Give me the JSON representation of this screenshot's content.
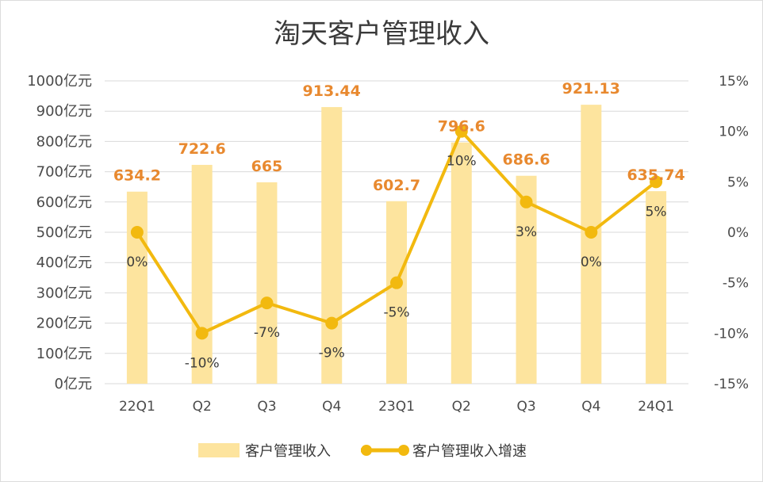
{
  "chart_data": {
    "type": "bar+line",
    "title": "淘天客户管理收入",
    "categories": [
      "22Q1",
      "Q2",
      "Q3",
      "Q4",
      "23Q1",
      "Q2",
      "Q3",
      "Q4",
      "24Q1"
    ],
    "series": [
      {
        "name": "客户管理收入",
        "type": "bar",
        "axis": "left",
        "color": "#fde49e",
        "values": [
          634.2,
          722.6,
          665,
          913.44,
          602.7,
          796.6,
          686.6,
          921.13,
          635.74
        ],
        "labels": [
          "634.2",
          "722.6",
          "665",
          "913.44",
          "602.7",
          "796.6",
          "686.6",
          "921.13",
          "635.74"
        ],
        "label_color": "#e8892f"
      },
      {
        "name": "客户管理收入增速",
        "type": "line",
        "axis": "right",
        "color": "#f2b90f",
        "values": [
          0,
          -10,
          -7,
          -9,
          -5,
          10,
          3,
          0,
          5
        ],
        "labels": [
          "0%",
          "-10%",
          "-7%",
          "-9%",
          "-5%",
          "10%",
          "3%",
          "0%",
          "5%"
        ]
      }
    ],
    "y_left": {
      "min": 0,
      "max": 1000,
      "ticks": [
        "0亿元",
        "100亿元",
        "200亿元",
        "300亿元",
        "400亿元",
        "500亿元",
        "600亿元",
        "700亿元",
        "800亿元",
        "900亿元",
        "1000亿元"
      ]
    },
    "y_right": {
      "min": -15,
      "max": 15,
      "ticks": [
        "-15%",
        "-10%",
        "-5%",
        "0%",
        "5%",
        "10%",
        "15%"
      ]
    },
    "grid": true,
    "legend_position": "bottom"
  }
}
